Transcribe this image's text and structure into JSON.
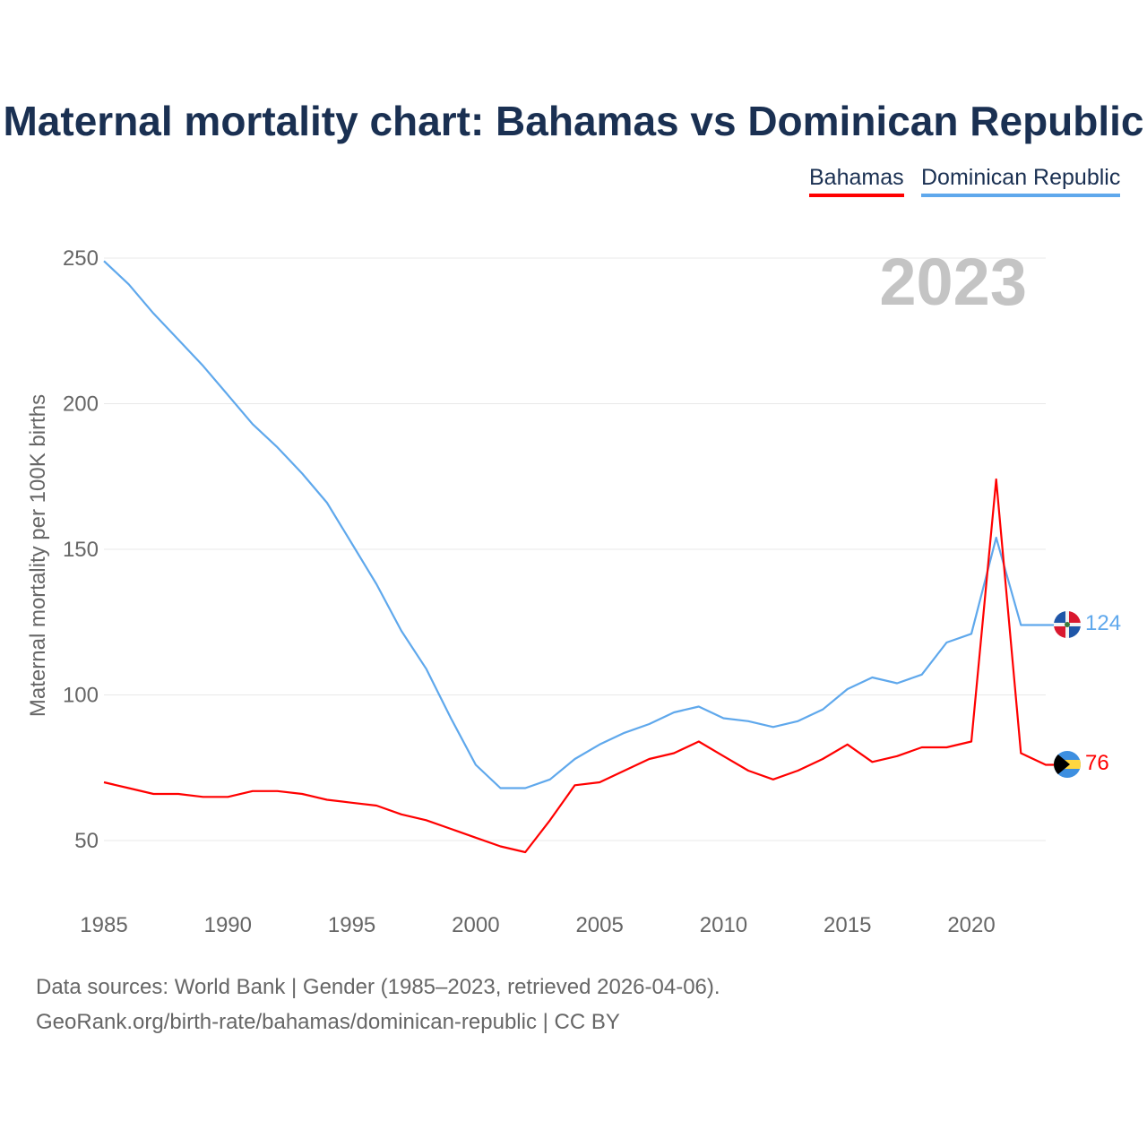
{
  "chart_data": {
    "type": "line",
    "title": "Maternal mortality chart: Bahamas vs Dominican Republic",
    "ylabel": "Maternal mortality per 100K births",
    "xlabel": "",
    "ylim": [
      50,
      250
    ],
    "xlim": [
      1985,
      2023
    ],
    "yticks": [
      50,
      100,
      150,
      200,
      250
    ],
    "xticks": [
      1985,
      1990,
      1995,
      2000,
      2005,
      2010,
      2015,
      2020
    ],
    "grid": true,
    "legend_placement": "top-right",
    "year_label": "2023",
    "x": [
      1985,
      1986,
      1987,
      1988,
      1989,
      1990,
      1991,
      1992,
      1993,
      1994,
      1995,
      1996,
      1997,
      1998,
      1999,
      2000,
      2001,
      2002,
      2003,
      2004,
      2005,
      2006,
      2007,
      2008,
      2009,
      2010,
      2011,
      2012,
      2013,
      2014,
      2015,
      2016,
      2017,
      2018,
      2019,
      2020,
      2021,
      2022,
      2023
    ],
    "series": [
      {
        "name": "Bahamas",
        "color": "#ff0000",
        "end_label": "76",
        "values": [
          70,
          68,
          66,
          66,
          65,
          65,
          67,
          67,
          66,
          64,
          63,
          62,
          59,
          57,
          54,
          51,
          48,
          46,
          57,
          69,
          70,
          74,
          78,
          80,
          84,
          79,
          74,
          71,
          74,
          78,
          83,
          77,
          79,
          82,
          82,
          84,
          174,
          80,
          76
        ]
      },
      {
        "name": "Dominican Republic",
        "color": "#5fa8ec",
        "end_label": "124",
        "values": [
          249,
          241,
          231,
          222,
          213,
          203,
          193,
          185,
          176,
          166,
          152,
          138,
          122,
          109,
          92,
          76,
          68,
          68,
          71,
          78,
          83,
          87,
          90,
          94,
          96,
          92,
          91,
          89,
          91,
          95,
          102,
          106,
          104,
          107,
          118,
          121,
          154,
          124,
          124
        ]
      }
    ]
  },
  "footer": {
    "line1": "Data sources: World Bank | Gender (1985–2023, retrieved 2026-04-06).",
    "line2": "GeoRank.org/birth-rate/bahamas/dominican-republic | CC BY"
  }
}
